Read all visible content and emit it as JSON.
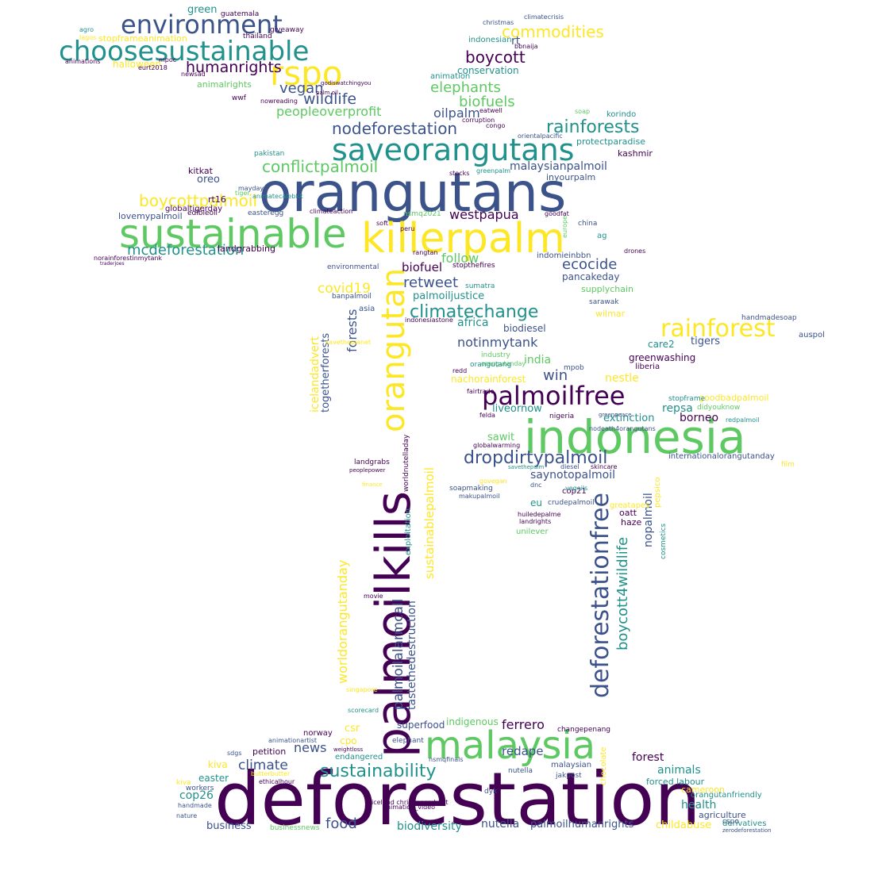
{
  "palette": [
    "#440154",
    "#3b528b",
    "#21918c",
    "#5ec962",
    "#fde725"
  ],
  "words": [
    {
      "text": "deforestation",
      "color": "#440154"
    },
    {
      "text": "orangutans",
      "color": "#3b528b"
    },
    {
      "text": "indonesia",
      "color": "#5ec962"
    },
    {
      "text": "killerpalm",
      "color": "#fde725"
    },
    {
      "text": "palmoilkills",
      "color": "#440154"
    },
    {
      "text": "sustainable",
      "color": "#5ec962"
    },
    {
      "text": "malaysia",
      "color": "#5ec962"
    },
    {
      "text": "orangutan",
      "color": "#fde725"
    },
    {
      "text": "saveorangutans",
      "color": "#21918c"
    },
    {
      "text": "choosesustainable",
      "color": "#21918c"
    },
    {
      "text": "rspo",
      "color": "#fde725"
    },
    {
      "text": "environment",
      "color": "#3b528b"
    },
    {
      "text": "palmoilfree",
      "color": "#440154"
    },
    {
      "text": "deforestationfree",
      "color": "#3b528b"
    },
    {
      "text": "rainforest",
      "color": "#fde725"
    },
    {
      "text": "boycottpalmoil",
      "color": "#fde725"
    },
    {
      "text": "conflictpalmoil",
      "color": "#5ec962"
    },
    {
      "text": "nodeforestation",
      "color": "#3b528b"
    },
    {
      "text": "mcdeforestation",
      "color": "#21918c"
    },
    {
      "text": "rainforests",
      "color": "#21918c"
    },
    {
      "text": "climatechange",
      "color": "#21918c"
    },
    {
      "text": "dropdirtypalmoil",
      "color": "#3b528b"
    },
    {
      "text": "sustainability",
      "color": "#21918c"
    },
    {
      "text": "commodities",
      "color": "#fde725"
    },
    {
      "text": "boycott",
      "color": "#440154"
    },
    {
      "text": "humanrights",
      "color": "#440154"
    },
    {
      "text": "wildlife",
      "color": "#3b528b"
    },
    {
      "text": "peopleoverprofit",
      "color": "#5ec962"
    },
    {
      "text": "vegan",
      "color": "#3b528b"
    },
    {
      "text": "elephants",
      "color": "#5ec962"
    },
    {
      "text": "biofuels",
      "color": "#5ec962"
    },
    {
      "text": "oilpalm",
      "color": "#3b528b"
    },
    {
      "text": "malaysianpalmoil",
      "color": "#3b528b"
    },
    {
      "text": "westpapua",
      "color": "#440154"
    },
    {
      "text": "follow",
      "color": "#5ec962"
    },
    {
      "text": "ecocide",
      "color": "#3b528b"
    },
    {
      "text": "retweet",
      "color": "#3b528b"
    },
    {
      "text": "biofuel",
      "color": "#440154"
    },
    {
      "text": "covid19",
      "color": "#fde725"
    },
    {
      "text": "notinmytank",
      "color": "#3b528b"
    },
    {
      "text": "palmoiljustice",
      "color": "#21918c"
    },
    {
      "text": "africa",
      "color": "#21918c"
    },
    {
      "text": "forests",
      "color": "#3b528b"
    },
    {
      "text": "india",
      "color": "#5ec962"
    },
    {
      "text": "win",
      "color": "#3b528b"
    },
    {
      "text": "nestle",
      "color": "#fde725"
    },
    {
      "text": "tigers",
      "color": "#3b528b"
    },
    {
      "text": "repsa",
      "color": "#21918c"
    },
    {
      "text": "borneo",
      "color": "#440154"
    },
    {
      "text": "extinction",
      "color": "#21918c"
    },
    {
      "text": "saynotopalmoil",
      "color": "#3b528b"
    },
    {
      "text": "liveornow",
      "color": "#21918c"
    },
    {
      "text": "sawit",
      "color": "#5ec962"
    },
    {
      "text": "boycott4wildlife",
      "color": "#21918c"
    },
    {
      "text": "nopalmoil",
      "color": "#3b528b"
    },
    {
      "text": "worldorangutanday",
      "color": "#fde725"
    },
    {
      "text": "palmoilalarmcall",
      "color": "#3b528b"
    },
    {
      "text": "sustainablepalmoil",
      "color": "#fde725"
    },
    {
      "text": "tastethedestruction",
      "color": "#3b528b"
    },
    {
      "text": "icelandadvert",
      "color": "#fde725"
    },
    {
      "text": "togetherforests",
      "color": "#3b528b"
    },
    {
      "text": "climate",
      "color": "#3b528b"
    },
    {
      "text": "news",
      "color": "#3b528b"
    },
    {
      "text": "food",
      "color": "#3b528b"
    },
    {
      "text": "nutella",
      "color": "#3b528b"
    },
    {
      "text": "biodiversity",
      "color": "#21918c"
    },
    {
      "text": "palmoilhumanrights",
      "color": "#3b528b"
    },
    {
      "text": "childabuse",
      "color": "#fde725"
    },
    {
      "text": "health",
      "color": "#21918c"
    },
    {
      "text": "animals",
      "color": "#21918c"
    },
    {
      "text": "forest",
      "color": "#440154"
    },
    {
      "text": "ferrero",
      "color": "#440154"
    },
    {
      "text": "redape",
      "color": "#3b528b"
    },
    {
      "text": "cop26",
      "color": "#21918c"
    },
    {
      "text": "kiva",
      "color": "#fde725"
    },
    {
      "text": "easter",
      "color": "#21918c"
    },
    {
      "text": "business",
      "color": "#3b528b"
    },
    {
      "text": "indigenous",
      "color": "#5ec962"
    },
    {
      "text": "superfood",
      "color": "#3b528b"
    },
    {
      "text": "csr",
      "color": "#fde725"
    },
    {
      "text": "cpo",
      "color": "#fde725"
    },
    {
      "text": "petition",
      "color": "#440154"
    },
    {
      "text": "landgrabbing",
      "color": "#440154"
    },
    {
      "text": "animalrights",
      "color": "#5ec962"
    },
    {
      "text": "green",
      "color": "#21918c"
    },
    {
      "text": "oreo",
      "color": "#3b528b"
    },
    {
      "text": "kitkat",
      "color": "#440154"
    },
    {
      "text": "lovemypalmoil",
      "color": "#3b528b"
    },
    {
      "text": "pancakeday",
      "color": "#3b528b"
    },
    {
      "text": "biodiesel",
      "color": "#3b528b"
    },
    {
      "text": "care2",
      "color": "#21918c"
    },
    {
      "text": "greenwashing",
      "color": "#440154"
    },
    {
      "text": "goodbadpalmoil",
      "color": "#fde725"
    },
    {
      "text": "internationalorangutanday",
      "color": "#3b528b"
    },
    {
      "text": "conservation",
      "color": "#21918c"
    },
    {
      "text": "stopframeanimation",
      "color": "#fde725"
    },
    {
      "text": "halloween",
      "color": "#fde725"
    },
    {
      "text": "animations",
      "color": "#440154"
    },
    {
      "text": "forced labour",
      "color": "#21918c"
    },
    {
      "text": "cameroon",
      "color": "#fde725"
    },
    {
      "text": "agriculture",
      "color": "#3b528b"
    },
    {
      "text": "derivatives",
      "color": "#21918c"
    },
    {
      "text": "nachorainforest",
      "color": "#fde725"
    },
    {
      "text": "indomieinbbn",
      "color": "#3b528b"
    },
    {
      "text": "supplychain",
      "color": "#5ec962"
    },
    {
      "text": "wilmar",
      "color": "#fde725"
    },
    {
      "text": "liberia",
      "color": "#440154"
    },
    {
      "text": "kashmir",
      "color": "#440154"
    },
    {
      "text": "protectparadise",
      "color": "#21918c"
    },
    {
      "text": "inyourpalm",
      "color": "#3b528b"
    },
    {
      "text": "korindo",
      "color": "#21918c"
    },
    {
      "text": "indonesian",
      "color": "#21918c"
    },
    {
      "text": "auspol",
      "color": "#3b528b"
    },
    {
      "text": "handmadesoap",
      "color": "#3b528b"
    },
    {
      "text": "endangered",
      "color": "#21918c"
    },
    {
      "text": "norway",
      "color": "#440154"
    },
    {
      "text": "nutella",
      "color": "#3b528b"
    },
    {
      "text": "greatapes",
      "color": "#fde725"
    },
    {
      "text": "oatt",
      "color": "#440154"
    },
    {
      "text": "haze",
      "color": "#440154"
    },
    {
      "text": "unilever",
      "color": "#5ec962"
    },
    {
      "text": "crudepalmoil",
      "color": "#3b528b"
    },
    {
      "text": "nsmq2021",
      "color": "#5ec962"
    },
    {
      "text": "giveaway",
      "color": "#440154"
    },
    {
      "text": "guatemala",
      "color": "#440154"
    },
    {
      "text": "thailand",
      "color": "#440154"
    },
    {
      "text": "orangutanday",
      "color": "#5ec962"
    },
    {
      "text": "mpob",
      "color": "#3b528b"
    },
    {
      "text": "fairtrade",
      "color": "#440154"
    },
    {
      "text": "europe",
      "color": "#5ec962"
    },
    {
      "text": "china",
      "color": "#3b528b"
    },
    {
      "text": "malaysian",
      "color": "#3b528b"
    },
    {
      "text": "elephant",
      "color": "#3b528b"
    },
    {
      "text": "indonesiastone",
      "color": "#440154"
    },
    {
      "text": "sumatra",
      "color": "#21918c"
    },
    {
      "text": "environmental",
      "color": "#3b528b"
    },
    {
      "text": "globaltigerday",
      "color": "#440154"
    },
    {
      "text": "rt16",
      "color": "#440154"
    },
    {
      "text": "edibleoil",
      "color": "#440154"
    },
    {
      "text": "easteregg",
      "color": "#3b528b"
    },
    {
      "text": "climateaction",
      "color": "#440154"
    },
    {
      "text": "ag",
      "color": "#21918c"
    },
    {
      "text": "drones",
      "color": "#440154"
    },
    {
      "text": "sarawak",
      "color": "#3b528b"
    },
    {
      "text": "savetheplanet",
      "color": "#fde725"
    },
    {
      "text": "animation",
      "color": "#21918c"
    },
    {
      "text": "rt",
      "color": "#3b528b"
    },
    {
      "text": "cop21",
      "color": "#440154"
    },
    {
      "text": "soapmaking",
      "color": "#3b528b"
    },
    {
      "text": "kiva",
      "color": "#fde725"
    },
    {
      "text": "workers",
      "color": "#3b528b"
    },
    {
      "text": "handmade",
      "color": "#3b528b"
    },
    {
      "text": "nature",
      "color": "#3b528b"
    },
    {
      "text": "businessnews",
      "color": "#5ec962"
    },
    {
      "text": "cspo",
      "color": "#3b528b"
    },
    {
      "text": "eu",
      "color": "#21918c"
    },
    {
      "text": "dnc",
      "color": "#3b528b"
    },
    {
      "text": "mpoc",
      "color": "#440154"
    },
    {
      "text": "eurt2018",
      "color": "#440154"
    },
    {
      "text": "newsad",
      "color": "#440154"
    },
    {
      "text": "wwf",
      "color": "#440154"
    },
    {
      "text": "agro",
      "color": "#21918c"
    },
    {
      "text": "lagos",
      "color": "#fde725"
    },
    {
      "text": "nowreading",
      "color": "#440154"
    },
    {
      "text": "godiswatchingyou",
      "color": "#440154"
    },
    {
      "text": "palm oil",
      "color": "#440154"
    },
    {
      "text": "stopthefires",
      "color": "#440154"
    },
    {
      "text": "corruption",
      "color": "#440154"
    },
    {
      "text": "eatwell",
      "color": "#440154"
    },
    {
      "text": "congo",
      "color": "#440154"
    },
    {
      "text": "greenpalm",
      "color": "#21918c"
    },
    {
      "text": "stocks",
      "color": "#440154"
    },
    {
      "text": "orientalpacific",
      "color": "#3b528b"
    },
    {
      "text": "pakistan",
      "color": "#21918c"
    },
    {
      "text": "mayday",
      "color": "#3b528b"
    },
    {
      "text": "animatecalebkk",
      "color": "#21918c"
    },
    {
      "text": "tiger",
      "color": "#5ec962"
    },
    {
      "text": "norainforestinmytank",
      "color": "#440154"
    },
    {
      "text": "traderjoes",
      "color": "#440154"
    },
    {
      "text": "goodfat",
      "color": "#440154"
    },
    {
      "text": "bbnaija",
      "color": "#440154"
    },
    {
      "text": "christmas",
      "color": "#3b528b"
    },
    {
      "text": "climatecrisis",
      "color": "#3b528b"
    },
    {
      "text": "peru",
      "color": "#440154"
    },
    {
      "text": "soft",
      "color": "#440154"
    },
    {
      "text": "rangtan",
      "color": "#440154"
    },
    {
      "text": "banpalmoil",
      "color": "#3b528b"
    },
    {
      "text": "asia",
      "color": "#3b528b"
    },
    {
      "text": "industry",
      "color": "#5ec962"
    },
    {
      "text": "orangutang",
      "color": "#21918c"
    },
    {
      "text": "redd",
      "color": "#440154"
    },
    {
      "text": "nigeria",
      "color": "#440154"
    },
    {
      "text": "felda",
      "color": "#440154"
    },
    {
      "text": "diesel",
      "color": "#3b528b"
    },
    {
      "text": "skincare",
      "color": "#440154"
    },
    {
      "text": "vegoils",
      "color": "#21918c"
    },
    {
      "text": "makupalmoil",
      "color": "#3b528b"
    },
    {
      "text": "huiledepalme",
      "color": "#440154"
    },
    {
      "text": "landrights",
      "color": "#440154"
    },
    {
      "text": "pepsico",
      "color": "#fde725"
    },
    {
      "text": "cosmetics",
      "color": "#21918c"
    },
    {
      "text": "film",
      "color": "#fde725"
    },
    {
      "text": "redpalmoil",
      "color": "#21918c"
    },
    {
      "text": "didyouknow",
      "color": "#5ec962"
    },
    {
      "text": "stopframe",
      "color": "#21918c"
    },
    {
      "text": "soap",
      "color": "#5ec962"
    },
    {
      "text": "nodeath4orangutans",
      "color": "#3b528b"
    },
    {
      "text": "savethepalm",
      "color": "#21918c"
    },
    {
      "text": "globalwarming",
      "color": "#440154"
    },
    {
      "text": "govegan",
      "color": "#fde725"
    },
    {
      "text": "landgrabs",
      "color": "#440154"
    },
    {
      "text": "peoplepower",
      "color": "#440154"
    },
    {
      "text": "finance",
      "color": "#fde725"
    },
    {
      "text": "worldnutelladay",
      "color": "#440154"
    },
    {
      "text": "exploitation",
      "color": "#21918c"
    },
    {
      "text": "movie",
      "color": "#440154"
    },
    {
      "text": "singapore",
      "color": "#fde725"
    },
    {
      "text": "scorecard",
      "color": "#21918c"
    },
    {
      "text": "animation_video",
      "color": "#440154"
    },
    {
      "text": "iceland christmasadvert",
      "color": "#440154"
    },
    {
      "text": "dyk",
      "color": "#3b528b"
    },
    {
      "text": "nsmqfinals",
      "color": "#3b528b"
    },
    {
      "text": "jakpost",
      "color": "#3b528b"
    },
    {
      "text": "changepenang",
      "color": "#440154"
    },
    {
      "text": "orangutanfriendly",
      "color": "#21918c"
    },
    {
      "text": "zerodeforestation",
      "color": "#3b528b"
    },
    {
      "text": "animationartist",
      "color": "#3b528b"
    },
    {
      "text": "sdgs",
      "color": "#3b528b"
    },
    {
      "text": "weightloss",
      "color": "#440154"
    },
    {
      "text": "ethicalhour",
      "color": "#440154"
    },
    {
      "text": "butterbutter",
      "color": "#fde725"
    },
    {
      "text": "greenpeace",
      "color": "#3b528b"
    },
    {
      "text": "chocolate",
      "color": "#fde725"
    }
  ]
}
